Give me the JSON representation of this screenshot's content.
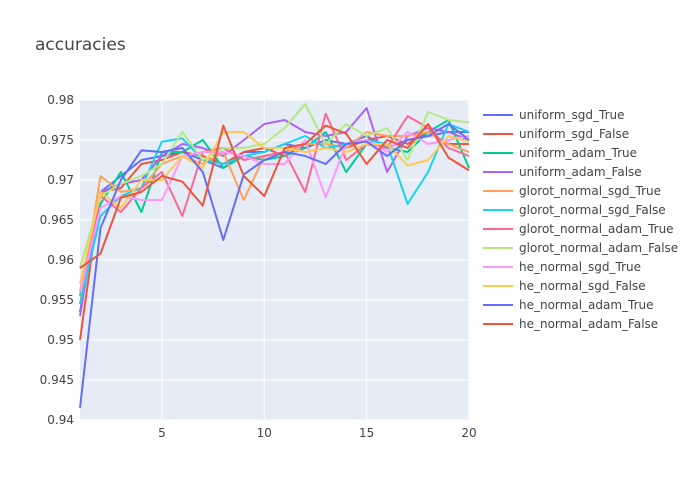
{
  "chart_data": {
    "type": "line",
    "title": "accuracies",
    "xlabel": "",
    "ylabel": "",
    "xlim": [
      1,
      20
    ],
    "ylim": [
      0.94,
      0.98
    ],
    "x_ticks": [
      5,
      10,
      15,
      20
    ],
    "y_ticks": [
      0.94,
      0.945,
      0.95,
      0.955,
      0.96,
      0.965,
      0.97,
      0.975,
      0.98
    ],
    "grid": true,
    "legend_position": "right",
    "x": [
      1,
      2,
      3,
      4,
      5,
      6,
      7,
      8,
      9,
      10,
      11,
      12,
      13,
      14,
      15,
      16,
      17,
      18,
      19,
      20
    ],
    "series": [
      {
        "name": "uniform_sgd_True",
        "color": "#636efa",
        "values": [
          0.9535,
          0.9685,
          0.9705,
          0.9725,
          0.973,
          0.9735,
          0.9725,
          0.9715,
          0.9735,
          0.9735,
          0.9745,
          0.974,
          0.975,
          0.9745,
          0.9755,
          0.974,
          0.975,
          0.9755,
          0.976,
          0.976
        ]
      },
      {
        "name": "uniform_sgd_False",
        "color": "#ef553b",
        "values": [
          0.95,
          0.9685,
          0.969,
          0.972,
          0.9725,
          0.9735,
          0.973,
          0.972,
          0.9735,
          0.974,
          0.973,
          0.9745,
          0.9745,
          0.974,
          0.975,
          0.9755,
          0.9745,
          0.976,
          0.9745,
          0.9745
        ]
      },
      {
        "name": "uniform_adam_True",
        "color": "#00cc96",
        "values": [
          0.9555,
          0.967,
          0.971,
          0.966,
          0.9735,
          0.9735,
          0.975,
          0.9715,
          0.973,
          0.9725,
          0.973,
          0.974,
          0.976,
          0.971,
          0.9745,
          0.974,
          0.9735,
          0.976,
          0.9775,
          0.9715
        ]
      },
      {
        "name": "uniform_adam_False",
        "color": "#ab63fa",
        "values": [
          0.953,
          0.9685,
          0.9695,
          0.97,
          0.973,
          0.9745,
          0.974,
          0.973,
          0.975,
          0.977,
          0.9775,
          0.976,
          0.9755,
          0.976,
          0.979,
          0.971,
          0.9755,
          0.9765,
          0.976,
          0.975
        ]
      },
      {
        "name": "glorot_normal_sgd_True",
        "color": "#ffa15a",
        "values": [
          0.9545,
          0.9705,
          0.9685,
          0.969,
          0.972,
          0.973,
          0.972,
          0.9735,
          0.9675,
          0.973,
          0.9735,
          0.9745,
          0.9745,
          0.974,
          0.976,
          0.9755,
          0.9755,
          0.976,
          0.9745,
          0.9735
        ]
      },
      {
        "name": "glorot_normal_sgd_False",
        "color": "#19d3f3",
        "values": [
          0.9545,
          0.9655,
          0.968,
          0.969,
          0.9748,
          0.9752,
          0.9725,
          0.972,
          0.973,
          0.9735,
          0.9745,
          0.9755,
          0.974,
          0.9745,
          0.975,
          0.9745,
          0.967,
          0.971,
          0.977,
          0.976
        ]
      },
      {
        "name": "glorot_normal_adam_True",
        "color": "#ff6692",
        "values": [
          0.956,
          0.968,
          0.966,
          0.969,
          0.971,
          0.9655,
          0.9735,
          0.974,
          0.9725,
          0.973,
          0.9735,
          0.9685,
          0.9783,
          0.9725,
          0.9745,
          0.974,
          0.978,
          0.9765,
          0.974,
          0.973
        ]
      },
      {
        "name": "glorot_normal_adam_False",
        "color": "#b6e880",
        "values": [
          0.959,
          0.968,
          0.9695,
          0.9705,
          0.972,
          0.976,
          0.9725,
          0.974,
          0.974,
          0.9745,
          0.9765,
          0.9795,
          0.9745,
          0.977,
          0.9755,
          0.9765,
          0.9725,
          0.9785,
          0.9775,
          0.9772
        ]
      },
      {
        "name": "he_normal_sgd_True",
        "color": "#ff97ff",
        "values": [
          0.956,
          0.9665,
          0.968,
          0.9675,
          0.9675,
          0.973,
          0.9735,
          0.9735,
          0.973,
          0.972,
          0.972,
          0.975,
          0.9678,
          0.9745,
          0.975,
          0.9735,
          0.976,
          0.9745,
          0.975,
          0.9755
        ]
      },
      {
        "name": "he_normal_sgd_False",
        "color": "#fecb52",
        "values": [
          0.957,
          0.9685,
          0.9665,
          0.97,
          0.97,
          0.973,
          0.9715,
          0.976,
          0.976,
          0.974,
          0.974,
          0.9735,
          0.974,
          0.9735,
          0.9745,
          0.9745,
          0.9718,
          0.9725,
          0.9755,
          0.9748
        ]
      },
      {
        "name": "he_normal_adam_True",
        "color": "#636efa",
        "values": [
          0.9415,
          0.964,
          0.97,
          0.9737,
          0.9735,
          0.974,
          0.971,
          0.9625,
          0.9707,
          0.9725,
          0.9735,
          0.973,
          0.972,
          0.9745,
          0.9748,
          0.973,
          0.975,
          0.9755,
          0.977,
          0.975
        ]
      },
      {
        "name": "he_normal_adam_False",
        "color": "#ef553b",
        "values": [
          0.959,
          0.9608,
          0.9678,
          0.9685,
          0.9705,
          0.9698,
          0.9668,
          0.9768,
          0.9705,
          0.968,
          0.974,
          0.9745,
          0.9768,
          0.9758,
          0.972,
          0.975,
          0.974,
          0.977,
          0.9728,
          0.9712
        ]
      }
    ]
  }
}
